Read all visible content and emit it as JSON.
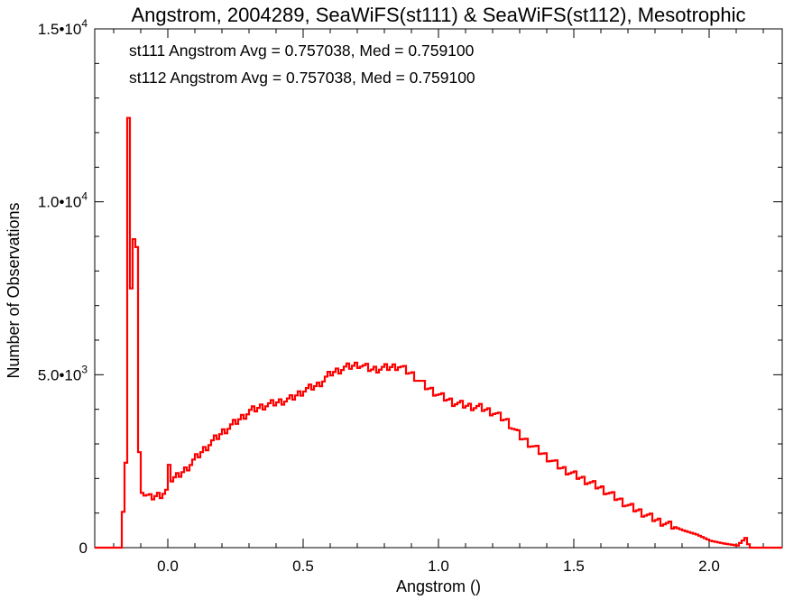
{
  "chart_data": {
    "type": "line",
    "title": "Angstrom, 2004289, SeaWiFS(st111) & SeaWiFS(st112), Mesotrophic",
    "xlabel": "Angstrom ()",
    "ylabel": "Number of Observations",
    "xlim": [
      -0.27,
      2.27
    ],
    "ylim": [
      0,
      15000
    ],
    "x_ticks": [
      {
        "value": 0.0,
        "label": "0.0"
      },
      {
        "value": 0.5,
        "label": "0.5"
      },
      {
        "value": 1.0,
        "label": "1.0"
      },
      {
        "value": 1.5,
        "label": "1.5"
      },
      {
        "value": 2.0,
        "label": "2.0"
      }
    ],
    "y_ticks": [
      {
        "value": 0,
        "mantissa": "0",
        "exponent": ""
      },
      {
        "value": 5000,
        "mantissa": "5.0•10",
        "exponent": "3"
      },
      {
        "value": 10000,
        "mantissa": "1.0•10",
        "exponent": "4"
      },
      {
        "value": 15000,
        "mantissa": "1.5•10",
        "exponent": "4"
      }
    ],
    "annotations": [
      {
        "text": "st111 Angstrom Avg = 0.757038, Med = 0.759100",
        "color": "#000000"
      },
      {
        "text": "st112 Angstrom Avg = 0.757038, Med = 0.759100",
        "color": "#ff0000"
      }
    ],
    "bin_width": 0.01,
    "series": [
      {
        "name": "st112",
        "color": "#ff0000",
        "x": [
          -0.27,
          -0.18,
          -0.16,
          -0.15,
          -0.14,
          -0.13,
          -0.12,
          -0.11,
          -0.1,
          -0.09,
          -0.07,
          -0.05,
          -0.03,
          -0.01,
          0.0,
          0.01,
          0.03,
          0.06,
          0.1,
          0.15,
          0.2,
          0.25,
          0.3,
          0.35,
          0.4,
          0.45,
          0.5,
          0.55,
          0.6,
          0.65,
          0.7,
          0.75,
          0.8,
          0.85,
          0.9,
          0.95,
          1.0,
          1.05,
          1.1,
          1.15,
          1.2,
          1.25,
          1.3,
          1.35,
          1.4,
          1.45,
          1.5,
          1.55,
          1.6,
          1.65,
          1.7,
          1.75,
          1.8,
          1.85,
          1.9,
          1.95,
          2.0,
          2.05,
          2.1,
          2.13,
          2.14,
          2.15,
          2.17,
          2.2,
          2.27
        ],
        "values": [
          0,
          0,
          2700,
          12600,
          7600,
          9200,
          8900,
          2900,
          1900,
          1750,
          1650,
          1700,
          1750,
          1850,
          2500,
          1950,
          2050,
          2250,
          2600,
          3000,
          3350,
          3650,
          3950,
          4100,
          4200,
          4300,
          4550,
          4700,
          5050,
          5200,
          5300,
          5150,
          5200,
          5250,
          5000,
          4650,
          4400,
          4200,
          4100,
          4050,
          3900,
          3650,
          3200,
          2900,
          2600,
          2300,
          2100,
          1900,
          1700,
          1450,
          1200,
          1000,
          800,
          650,
          500,
          380,
          200,
          120,
          60,
          280,
          100,
          0,
          0,
          0,
          0
        ]
      }
    ]
  }
}
